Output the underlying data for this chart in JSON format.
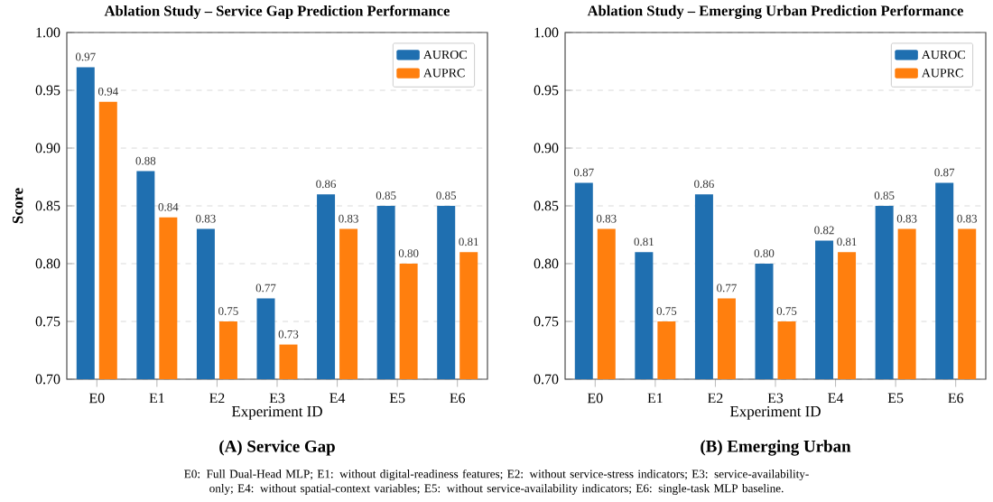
{
  "chart_data": [
    {
      "type": "bar",
      "title": "Ablation Study – Service Gap Prediction Performance",
      "xlabel": "Experiment ID",
      "ylabel": "Score",
      "categories": [
        "E0",
        "E1",
        "E2",
        "E3",
        "E4",
        "E5",
        "E6"
      ],
      "series": [
        {
          "name": "AUROC",
          "color": "#1f6fb0",
          "values": [
            0.97,
            0.88,
            0.83,
            0.77,
            0.86,
            0.85,
            0.85
          ],
          "value_labels": [
            "0.97",
            "0.88",
            "0.83",
            "0.77",
            "0.86",
            "0.85",
            "0.85"
          ]
        },
        {
          "name": "AUPRC",
          "color": "#ff7f0e",
          "values": [
            0.94,
            0.84,
            0.75,
            0.73,
            0.83,
            0.8,
            0.81
          ],
          "value_labels": [
            "0.94",
            "0.84",
            "0.75",
            "0.73",
            "0.83",
            "0.80",
            "0.81"
          ]
        }
      ],
      "ylim": [
        0.7,
        1.0
      ],
      "yticks": [
        {
          "value": 0.7,
          "label": "0.70"
        },
        {
          "value": 0.75,
          "label": "0.75"
        },
        {
          "value": 0.8,
          "label": "0.80"
        },
        {
          "value": 0.85,
          "label": "0.85"
        },
        {
          "value": 0.9,
          "label": "0.90"
        },
        {
          "value": 0.95,
          "label": "0.95"
        },
        {
          "value": 1.0,
          "label": "1.00"
        }
      ],
      "grid": "y",
      "legend": "top right",
      "annotations": [
        "(A) Service Gap",
        "E0: Full Dual-Head MLP; E1: without digital-readiness features; E2: without service-stress indicators; E3: service-availability-only; E4: without spatial-context variables; E5: without service-availability indicators; E6: single-task MLP baseline."
      ]
    },
    {
      "type": "bar",
      "title": "Ablation Study – Emerging Urban Prediction Performance",
      "xlabel": "Experiment ID",
      "categories": [
        "E0",
        "E1",
        "E2",
        "E3",
        "E4",
        "E5",
        "E6"
      ],
      "series": [
        {
          "name": "AUROC",
          "color": "#1f6fb0",
          "values": [
            0.87,
            0.81,
            0.86,
            0.8,
            0.82,
            0.85,
            0.87
          ],
          "value_labels": [
            "0.87",
            "0.81",
            "0.86",
            "0.80",
            "0.82",
            "0.85",
            "0.87"
          ]
        },
        {
          "name": "AUPRC",
          "color": "#ff7f0e",
          "values": [
            0.83,
            0.75,
            0.77,
            0.75,
            0.81,
            0.83,
            0.83
          ],
          "value_labels": [
            "0.83",
            "0.75",
            "0.77",
            "0.75",
            "0.81",
            "0.83",
            "0.83"
          ]
        }
      ],
      "ylim": [
        0.7,
        1.0
      ],
      "yticks": [
        {
          "value": 0.7,
          "label": "0.70"
        },
        {
          "value": 0.75,
          "label": "0.75"
        },
        {
          "value": 0.8,
          "label": "0.80"
        },
        {
          "value": 0.85,
          "label": "0.85"
        },
        {
          "value": 0.9,
          "label": "0.90"
        },
        {
          "value": 0.95,
          "label": "0.95"
        },
        {
          "value": 1.0,
          "label": "1.00"
        }
      ],
      "grid": "y",
      "legend": "top right",
      "annotations": [
        "(B) Emerging Urban"
      ]
    }
  ]
}
